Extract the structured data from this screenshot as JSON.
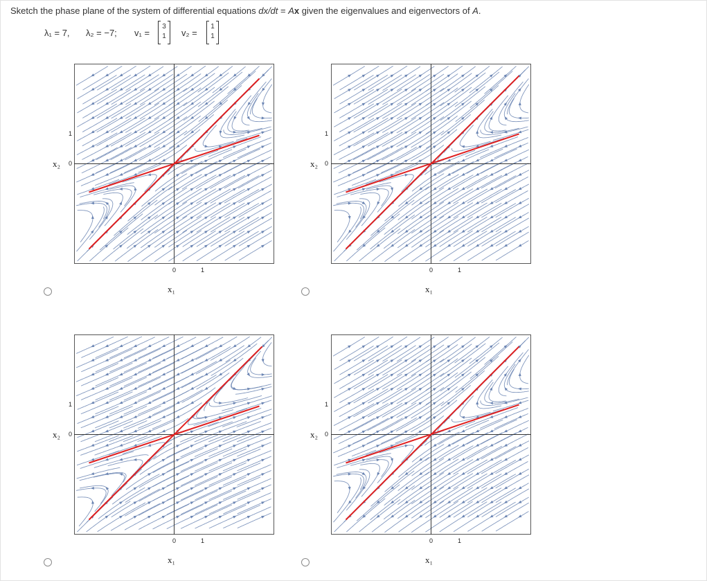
{
  "question": {
    "prefix": "Sketch the phase plane of the system of differential equations ",
    "eq_lhs": "dx/dt",
    "eq_eq": " = ",
    "eq_a": "A",
    "eq_x": "x",
    "suffix": " given the eigenvalues and eigenvectors of ",
    "suffix_a": "A",
    "suffix_dot": "."
  },
  "given": {
    "lambda1": "λ₁ = 7,",
    "lambda2": "λ₂ = −7;",
    "v1_label": "v₁ =",
    "v1": [
      "3",
      "1"
    ],
    "v2_label": "v₂ =",
    "v2": [
      "1",
      "1"
    ]
  },
  "axes": {
    "x_label": "x₁",
    "y_label": "x₂",
    "y_zero": "0",
    "y_one": "1",
    "x_zero": "0",
    "x_one": "1"
  },
  "colors": {
    "stream": "#6b85b3",
    "eigenline": "#e02020",
    "axis": "#333333",
    "frame": "#555555"
  },
  "options": [
    {
      "name": "option-a",
      "selected": false
    },
    {
      "name": "option-b",
      "selected": false
    },
    {
      "name": "option-c",
      "selected": false
    },
    {
      "name": "option-d",
      "selected": false
    }
  ]
}
